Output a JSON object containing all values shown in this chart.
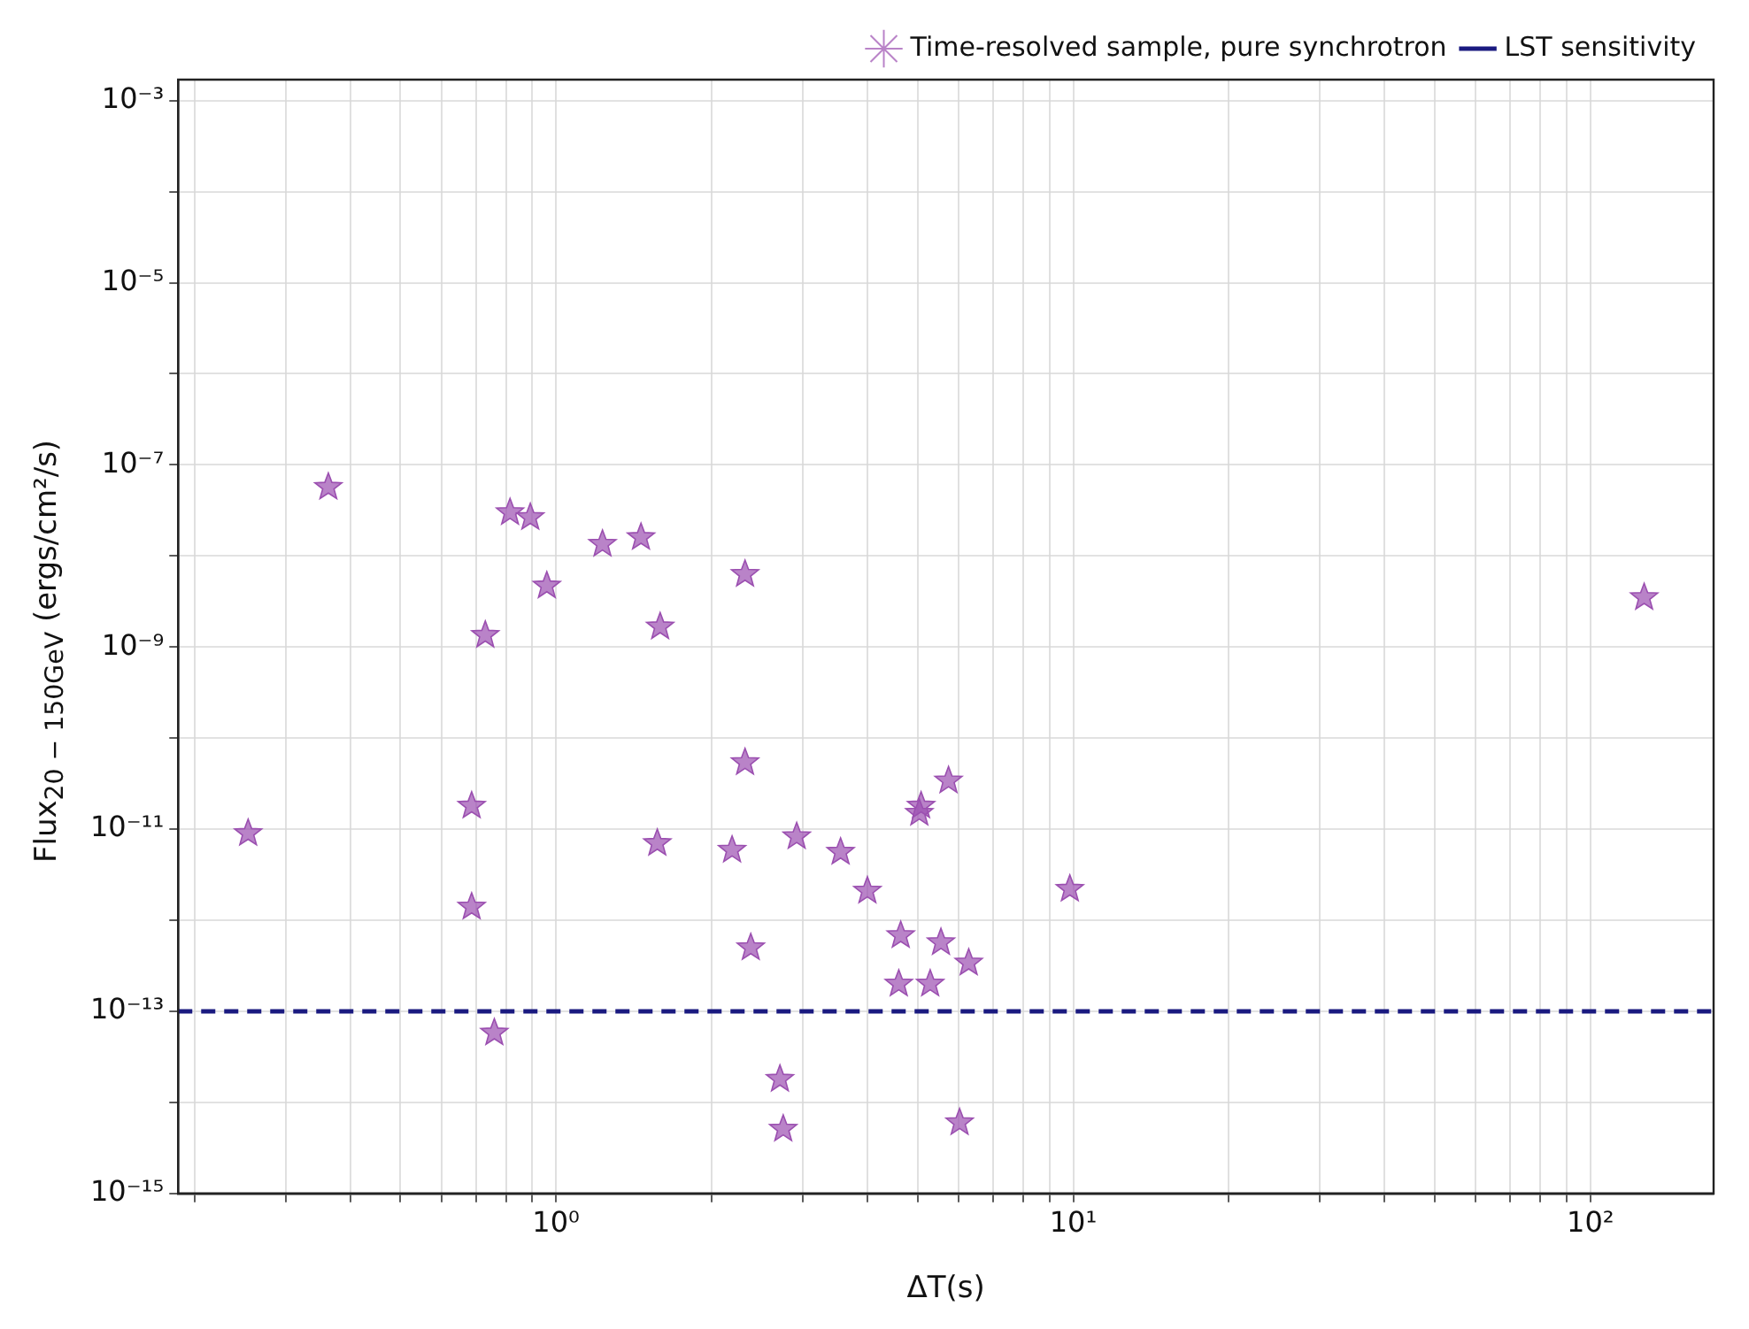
{
  "chart_data": {
    "type": "scatter",
    "xlabel": "ΔT(s)",
    "ylabel": "Flux$_{20 − 150GeV}$  (ergs/cm²/s)",
    "log": "xy",
    "grid": true,
    "legend": "top right",
    "marker": "star",
    "xlim": [
      0.186,
      173
    ],
    "ylim": [
      1e-15,
      0.0017
    ],
    "xticks": [
      {
        "value": 0.2,
        "label": null
      },
      {
        "value": 0.3,
        "label": null
      },
      {
        "value": 0.4,
        "label": null
      },
      {
        "value": 0.5,
        "label": null
      },
      {
        "value": 0.6,
        "label": null
      },
      {
        "value": 0.7,
        "label": null
      },
      {
        "value": 0.8,
        "label": null
      },
      {
        "value": 0.9,
        "label": null
      },
      {
        "value": 1,
        "label": "10⁰"
      },
      {
        "value": 2,
        "label": null
      },
      {
        "value": 3,
        "label": null
      },
      {
        "value": 4,
        "label": null
      },
      {
        "value": 5,
        "label": null
      },
      {
        "value": 6,
        "label": null
      },
      {
        "value": 7,
        "label": null
      },
      {
        "value": 8,
        "label": null
      },
      {
        "value": 9,
        "label": null
      },
      {
        "value": 10,
        "label": "10¹"
      },
      {
        "value": 20,
        "label": null
      },
      {
        "value": 30,
        "label": null
      },
      {
        "value": 40,
        "label": null
      },
      {
        "value": 50,
        "label": null
      },
      {
        "value": 60,
        "label": null
      },
      {
        "value": 70,
        "label": null
      },
      {
        "value": 80,
        "label": null
      },
      {
        "value": 90,
        "label": null
      },
      {
        "value": 100,
        "label": "10²"
      }
    ],
    "yticks": [
      {
        "value": 1e-15,
        "label": "10⁻¹⁵"
      },
      {
        "value": 1e-14,
        "label": null
      },
      {
        "value": 1e-13,
        "label": "10⁻¹³"
      },
      {
        "value": 1e-12,
        "label": null
      },
      {
        "value": 1e-11,
        "label": "10⁻¹¹"
      },
      {
        "value": 1e-10,
        "label": null
      },
      {
        "value": 1e-09,
        "label": "10⁻⁹"
      },
      {
        "value": 1e-08,
        "label": null
      },
      {
        "value": 1e-07,
        "label": "10⁻⁷"
      },
      {
        "value": 1e-06,
        "label": null
      },
      {
        "value": 1e-05,
        "label": "10⁻⁵"
      },
      {
        "value": 0.0001,
        "label": null
      },
      {
        "value": 0.001,
        "label": "10⁻³"
      }
    ],
    "series": [
      {
        "name": "Time-resolved sample, pure synchrotron",
        "color": "#9b4fb0",
        "x": [
          0.254,
          0.363,
          0.815,
          0.892,
          1.23,
          1.46,
          0.96,
          0.73,
          1.59,
          2.32,
          2.32,
          0.687,
          0.687,
          1.57,
          2.19,
          2.92,
          3.55,
          4.0,
          2.38,
          4.64,
          5.55,
          6.28,
          4.6,
          5.29,
          5.08,
          5.04,
          5.74,
          9.85,
          0.76,
          2.71,
          2.75,
          6.03,
          127
        ],
        "values": [
          9e-12,
          5.7e-08,
          3e-08,
          2.65e-08,
          1.35e-08,
          1.6e-08,
          4.7e-09,
          1.35e-09,
          1.67e-09,
          6.3e-09,
          5.4e-11,
          1.8e-11,
          1.4e-12,
          7e-12,
          5.9e-12,
          8.3e-12,
          5.6e-12,
          2.1e-12,
          5e-13,
          6.8e-13,
          5.7e-13,
          3.4e-13,
          2e-13,
          2e-13,
          1.8e-11,
          1.5e-11,
          3.4e-11,
          2.2e-12,
          5.8e-14,
          1.8e-14,
          5.1e-15,
          6e-15,
          3.5e-09
        ]
      }
    ],
    "ref_lines": [
      {
        "axis": "y",
        "value": 1e-13,
        "label": "LST sensitivity",
        "color": "#1a1a80",
        "line_style": "dashed"
      }
    ]
  }
}
